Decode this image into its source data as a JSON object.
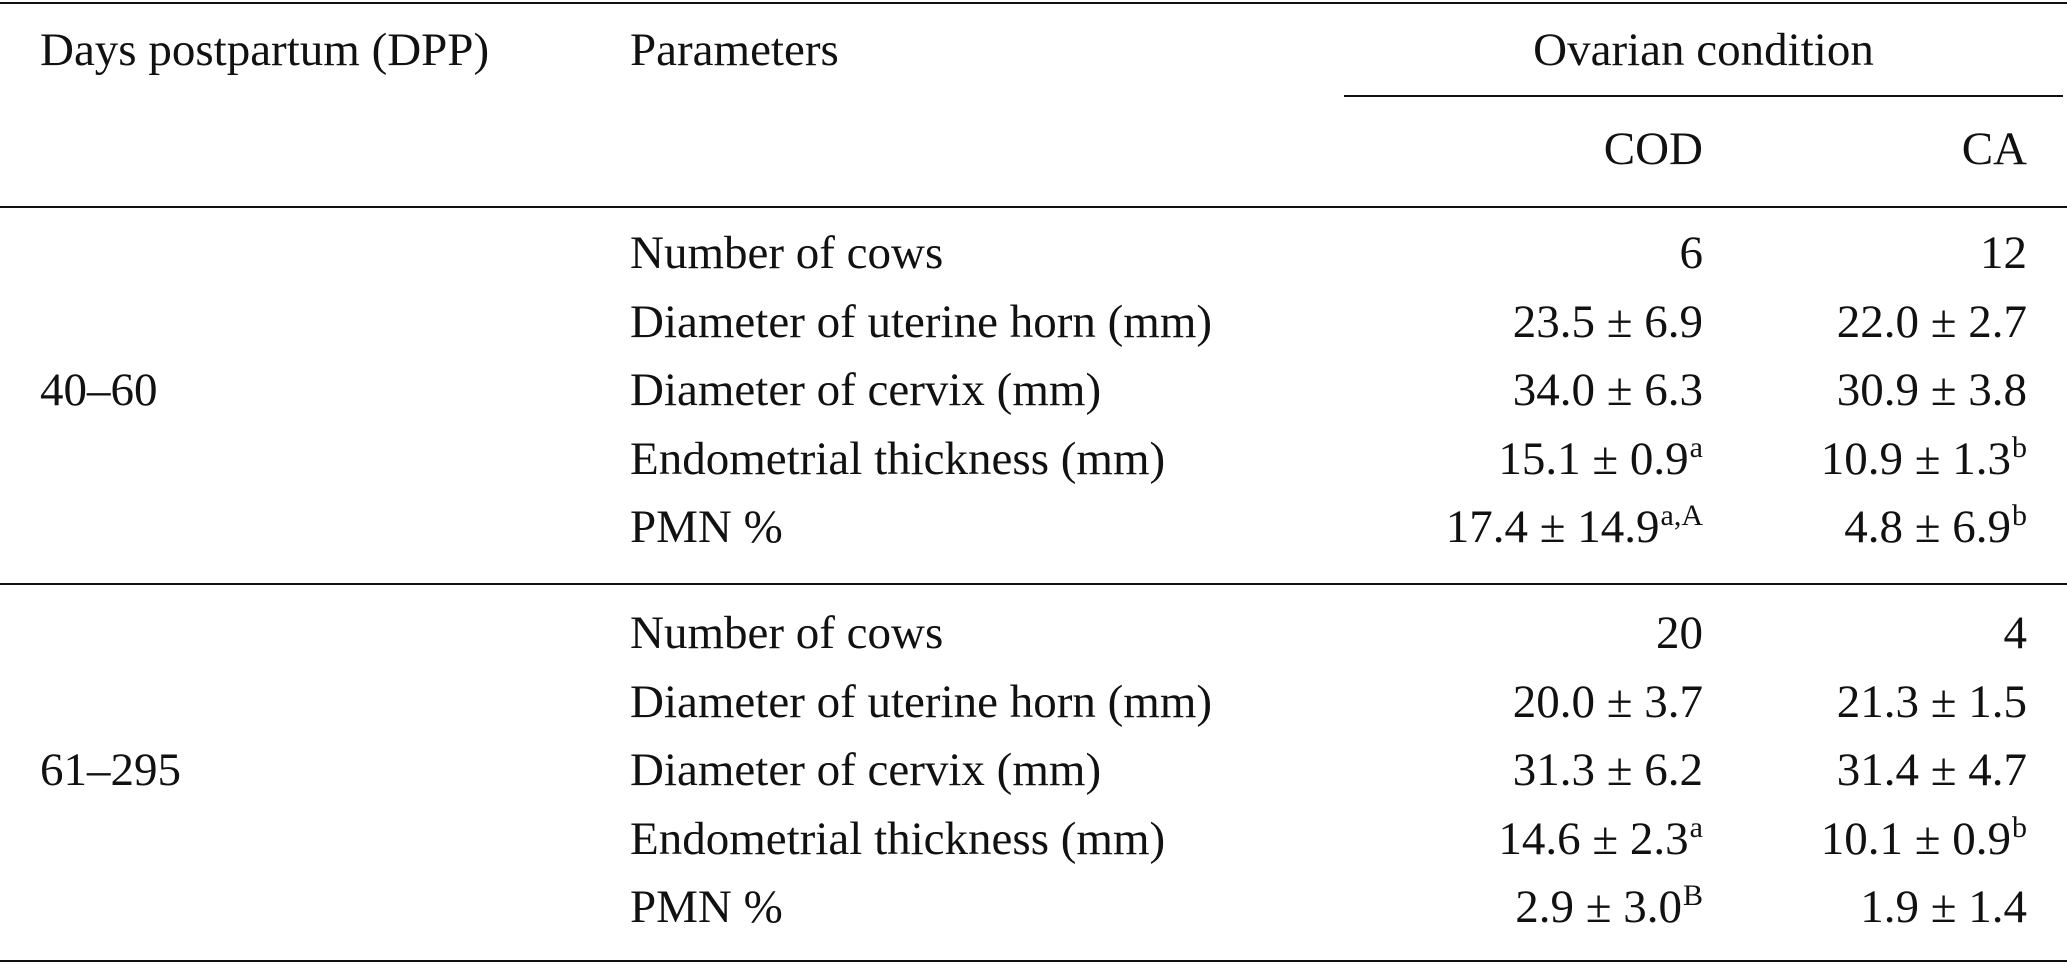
{
  "table": {
    "header": {
      "dpp": "Days postpartum (DPP)",
      "parameters": "Parameters",
      "group": "Ovarian condition",
      "columns": [
        "COD",
        "CA"
      ]
    },
    "groups": [
      {
        "label": "40–60",
        "rows": [
          {
            "parameter": "Number of cows",
            "cells": [
              {
                "value": "6"
              },
              {
                "value": "12"
              }
            ]
          },
          {
            "parameter": "Diameter of uterine horn (mm)",
            "cells": [
              {
                "value": "23.5 ± 6.9"
              },
              {
                "value": "22.0 ± 2.7"
              }
            ]
          },
          {
            "parameter": "Diameter of cervix (mm)",
            "cells": [
              {
                "value": "34.0 ± 6.3"
              },
              {
                "value": "30.9 ± 3.8"
              }
            ]
          },
          {
            "parameter": "Endometrial thickness (mm)",
            "cells": [
              {
                "value": "15.1 ± 0.9",
                "sup": "a"
              },
              {
                "value": "10.9 ± 1.3",
                "sup": "b"
              }
            ]
          },
          {
            "parameter": "PMN %",
            "cells": [
              {
                "value": "17.4 ± 14.9",
                "sup": "a,A"
              },
              {
                "value": "4.8 ± 6.9",
                "sup": "b"
              }
            ]
          }
        ]
      },
      {
        "label": "61–295",
        "rows": [
          {
            "parameter": "Number of cows",
            "cells": [
              {
                "value": "20"
              },
              {
                "value": "4"
              }
            ]
          },
          {
            "parameter": "Diameter of uterine horn (mm)",
            "cells": [
              {
                "value": "20.0 ± 3.7"
              },
              {
                "value": "21.3 ± 1.5"
              }
            ]
          },
          {
            "parameter": "Diameter of cervix (mm)",
            "cells": [
              {
                "value": "31.3 ± 6.2"
              },
              {
                "value": "31.4 ± 4.7"
              }
            ]
          },
          {
            "parameter": "Endometrial thickness (mm)",
            "cells": [
              {
                "value": "14.6 ± 2.3",
                "sup": "a"
              },
              {
                "value": "10.1 ± 0.9",
                "sup": "b"
              }
            ]
          },
          {
            "parameter": "PMN %",
            "cells": [
              {
                "value": "2.9 ± 3.0",
                "sup": "B"
              },
              {
                "value": "1.9 ± 1.4"
              }
            ]
          }
        ]
      }
    ]
  }
}
